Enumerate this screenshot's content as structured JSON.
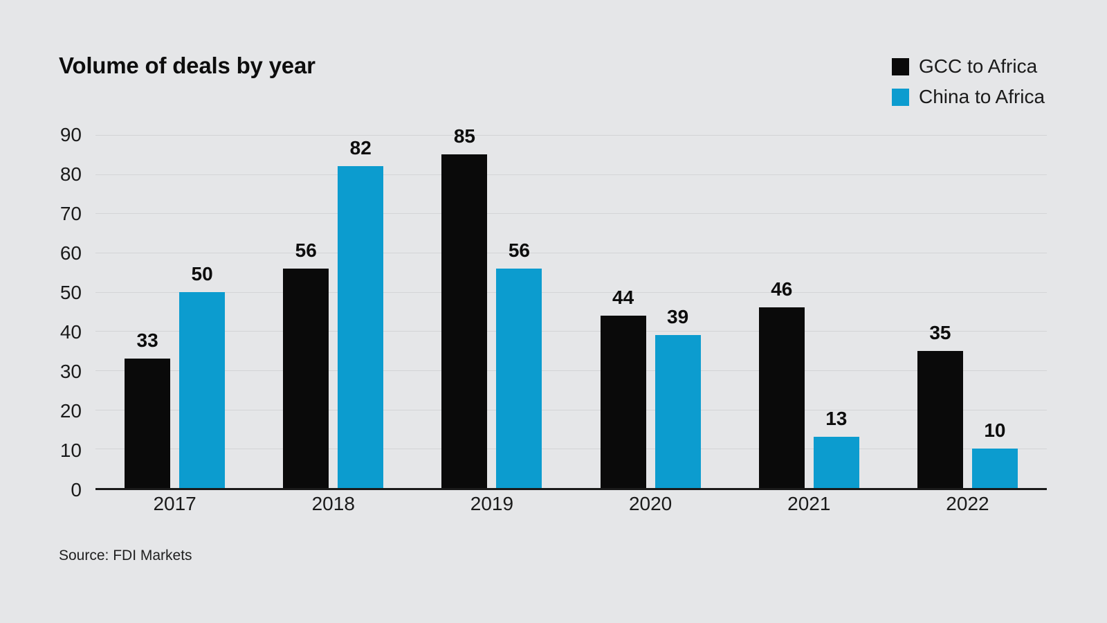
{
  "chart": {
    "title": "Volume of deals by year",
    "source": "Source: FDI Markets"
  },
  "chart_data": {
    "type": "bar",
    "title": "Volume of deals by year",
    "categories": [
      "2017",
      "2018",
      "2019",
      "2020",
      "2021",
      "2022"
    ],
    "series": [
      {
        "name": "GCC to Africa",
        "color": "#0a0a0a",
        "values": [
          33,
          56,
          85,
          44,
          46,
          35
        ]
      },
      {
        "name": "China to Africa",
        "color": "#0c9ccf",
        "values": [
          50,
          82,
          56,
          39,
          13,
          10
        ]
      }
    ],
    "xlabel": "",
    "ylabel": "",
    "ylim": [
      0,
      90
    ],
    "yticks": [
      0,
      10,
      20,
      30,
      40,
      50,
      60,
      70,
      80,
      90
    ],
    "grid": true,
    "legend_position": "top-right",
    "source": "Source: FDI Markets",
    "colors": {
      "background": "#e5e6e8",
      "gridline": "#d3d4d6",
      "axis": "#1a1a1a",
      "text": "#0d0d0d"
    }
  }
}
